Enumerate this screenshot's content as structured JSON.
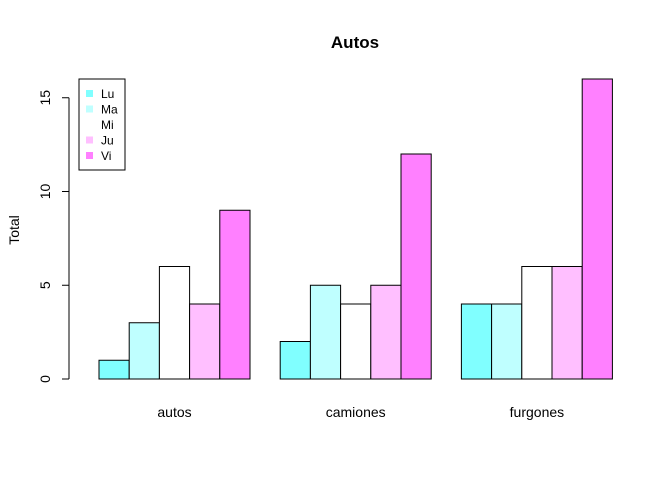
{
  "chart_data": {
    "type": "bar",
    "title": "Autos",
    "xlabel": "",
    "ylabel": "Total",
    "categories": [
      "autos",
      "camiones",
      "furgones"
    ],
    "series": [
      {
        "name": "Lu",
        "color": "#80FFFF",
        "values": [
          1,
          2,
          4
        ]
      },
      {
        "name": "Ma",
        "color": "#BFFFFF",
        "values": [
          3,
          5,
          4
        ]
      },
      {
        "name": "Mi",
        "color": "#FFFFFF",
        "values": [
          6,
          4,
          6
        ]
      },
      {
        "name": "Ju",
        "color": "#FFBFFF",
        "values": [
          4,
          5,
          6
        ]
      },
      {
        "name": "Vi",
        "color": "#FF80FF",
        "values": [
          9,
          12,
          16
        ]
      }
    ],
    "yticks": [
      0,
      5,
      10,
      15
    ],
    "ylim": [
      0,
      16
    ],
    "grid": false,
    "legend_position": "top-left",
    "bar_mode": "grouped"
  }
}
